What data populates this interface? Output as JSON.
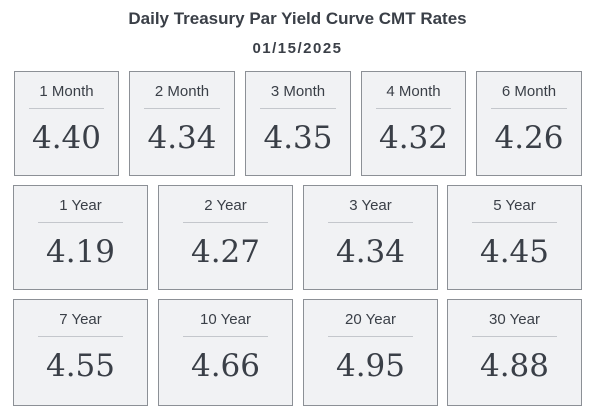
{
  "header": {
    "title": "Daily Treasury Par Yield Curve CMT Rates",
    "date": "01/15/2025"
  },
  "rates": [
    {
      "label": "1 Month",
      "value": "4.40"
    },
    {
      "label": "2 Month",
      "value": "4.34"
    },
    {
      "label": "3 Month",
      "value": "4.35"
    },
    {
      "label": "4 Month",
      "value": "4.32"
    },
    {
      "label": "6 Month",
      "value": "4.26"
    },
    {
      "label": "1 Year",
      "value": "4.19"
    },
    {
      "label": "2 Year",
      "value": "4.27"
    },
    {
      "label": "3 Year",
      "value": "4.34"
    },
    {
      "label": "5 Year",
      "value": "4.45"
    },
    {
      "label": "7 Year",
      "value": "4.55"
    },
    {
      "label": "10 Year",
      "value": "4.66"
    },
    {
      "label": "20 Year",
      "value": "4.95"
    },
    {
      "label": "30 Year",
      "value": "4.88"
    }
  ]
}
